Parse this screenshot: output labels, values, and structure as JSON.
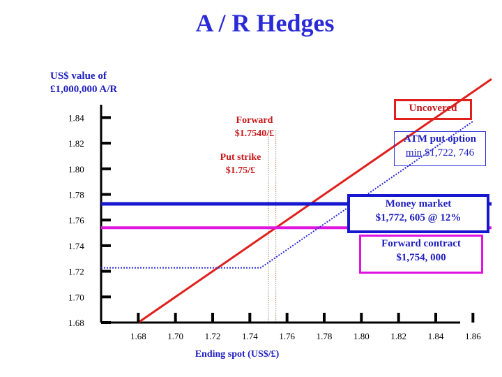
{
  "title": "A / R Hedges",
  "ylabel_line1": "US$ value of",
  "ylabel_line2": "£1,000,000 A/R",
  "xlabel": "Ending spot (US$/£)",
  "annotations": {
    "uncovered": "Uncovered",
    "atm_line1": "ATM put option",
    "atm_line2_prefix": "min",
    "atm_line2_value": " $1,722, 746",
    "forward_line1": "Forward",
    "forward_line2": "$1.7540/£",
    "putstrike_line1": "Put strike",
    "putstrike_line2": "$1.75/£",
    "mm_line1": "Money market",
    "mm_line2": "$1,772, 605 @ 12%",
    "fc_line1": "Forward contract",
    "fc_line2": "$1,754, 000"
  },
  "colors": {
    "uncovered": "#e0201c",
    "money_market": "#1717d0",
    "forward_contract": "#e013e0",
    "atm_put": "#2a2ad8",
    "guide_lines": "#8a4a4a",
    "title": "#2a2ad8"
  },
  "chart_data": {
    "type": "line",
    "xlabel": "Ending spot (US$/£)",
    "ylabel": "US$ value of £1,000,000 A/R",
    "x_ticks": [
      "1.68",
      "1.70",
      "1.72",
      "1.74",
      "1.76",
      "1.78",
      "1.80",
      "1.82",
      "1.84",
      "1.86"
    ],
    "y_ticks": [
      "1.68",
      "1.70",
      "1.72",
      "1.74",
      "1.76",
      "1.78",
      "1.80",
      "1.82",
      "1.84"
    ],
    "xlim": [
      1.66,
      1.87
    ],
    "ylim": [
      1.68,
      1.85
    ],
    "series": [
      {
        "name": "Uncovered",
        "style": "solid",
        "x": [
          1.68,
          1.87
        ],
        "y": [
          1.68,
          1.87
        ]
      },
      {
        "name": "Money market",
        "style": "solid",
        "x": [
          1.66,
          1.87
        ],
        "y": [
          1.7726,
          1.7726
        ]
      },
      {
        "name": "Forward contract",
        "style": "solid",
        "x": [
          1.66,
          1.87
        ],
        "y": [
          1.754,
          1.754
        ]
      },
      {
        "name": "ATM put option",
        "style": "dashed",
        "x": [
          1.66,
          1.7458,
          1.86
        ],
        "y": [
          1.7227,
          1.7227,
          1.837
        ]
      }
    ],
    "vertical_markers": [
      1.75,
      1.754
    ],
    "grid": false
  }
}
